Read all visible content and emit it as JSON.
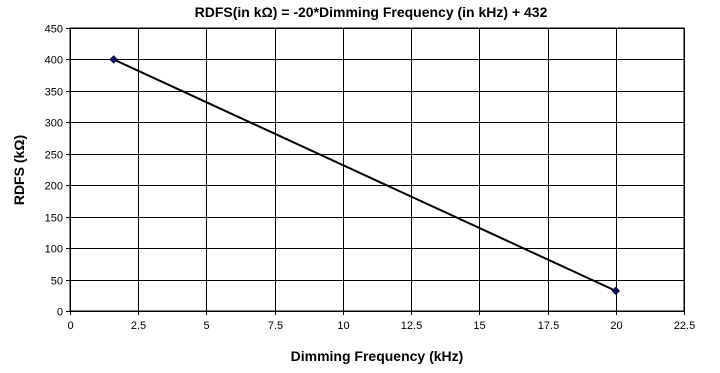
{
  "chart_data": {
    "type": "line",
    "title": "RDFS(in kΩ) = -20*Dimming Frequency (in kHz) + 432",
    "xlabel": "Dimming Frequency (kHz)",
    "ylabel": "RDFS (kΩ)",
    "xlim": [
      0,
      22.5
    ],
    "ylim": [
      0,
      450
    ],
    "xticks": [
      "0",
      "2.5",
      "5",
      "7.5",
      "10",
      "12.5",
      "15",
      "17.5",
      "20",
      "22.5"
    ],
    "yticks": [
      "0",
      "50",
      "100",
      "150",
      "200",
      "250",
      "300",
      "350",
      "400",
      "450"
    ],
    "grid": true,
    "legend": "none",
    "series": [
      {
        "x": [
          1.6,
          20
        ],
        "y": [
          400,
          32
        ],
        "color": "#000000",
        "marker_color": "#0b0b5a"
      }
    ]
  }
}
